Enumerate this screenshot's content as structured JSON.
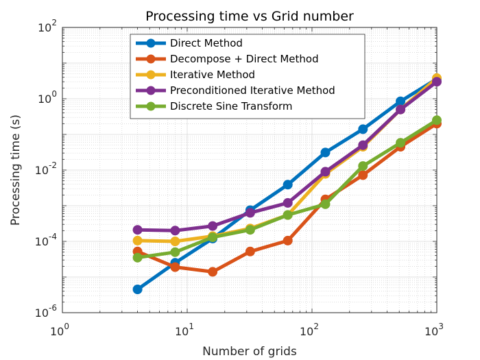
{
  "chart_data": {
    "type": "line",
    "title": "Processing time vs Grid number",
    "xlabel": "Number of grids",
    "ylabel": "Processing time (s)",
    "xscale": "log",
    "yscale": "log",
    "xlim": [
      1,
      1000
    ],
    "ylim": [
      1e-06,
      100
    ],
    "grid": true,
    "minor_grid": true,
    "legend_position": "top-center",
    "x_ticks": [
      {
        "base": "10",
        "exp": "0"
      },
      {
        "base": "10",
        "exp": "1"
      },
      {
        "base": "10",
        "exp": "2"
      },
      {
        "base": "10",
        "exp": "3"
      }
    ],
    "y_ticks": [
      {
        "base": "10",
        "exp": "-6"
      },
      {
        "base": "10",
        "exp": "-4"
      },
      {
        "base": "10",
        "exp": "-2"
      },
      {
        "base": "10",
        "exp": "0"
      },
      {
        "base": "10",
        "exp": "2"
      }
    ],
    "x": [
      4,
      8,
      16,
      32,
      64,
      128,
      256,
      512,
      1000
    ],
    "series": [
      {
        "name": "Direct Method",
        "color": "#0072BD",
        "values": [
          4.5e-06,
          2.5e-05,
          0.00012,
          0.00075,
          0.0039,
          0.031,
          0.14,
          0.85,
          3.6
        ]
      },
      {
        "name": "Decompose + Direct Method",
        "color": "#D95319",
        "values": [
          5.2e-05,
          1.9e-05,
          1.4e-05,
          5.2e-05,
          0.000105,
          0.0015,
          0.0072,
          0.045,
          0.2
        ]
      },
      {
        "name": "Iterative Method",
        "color": "#EDB120",
        "values": [
          0.000105,
          0.0001,
          0.00014,
          0.00023,
          0.00055,
          0.0078,
          0.045,
          0.5,
          3.8
        ]
      },
      {
        "name": "Preconditioned Iterative Method",
        "color": "#7E2F8E",
        "values": [
          0.00021,
          0.0002,
          0.00027,
          0.00063,
          0.0012,
          0.009,
          0.05,
          0.5,
          3.0
        ]
      },
      {
        "name": "Discrete Sine Transform",
        "color": "#77AC30",
        "values": [
          3.5e-05,
          5e-05,
          0.00013,
          0.00021,
          0.00055,
          0.0011,
          0.013,
          0.058,
          0.25
        ]
      }
    ]
  }
}
